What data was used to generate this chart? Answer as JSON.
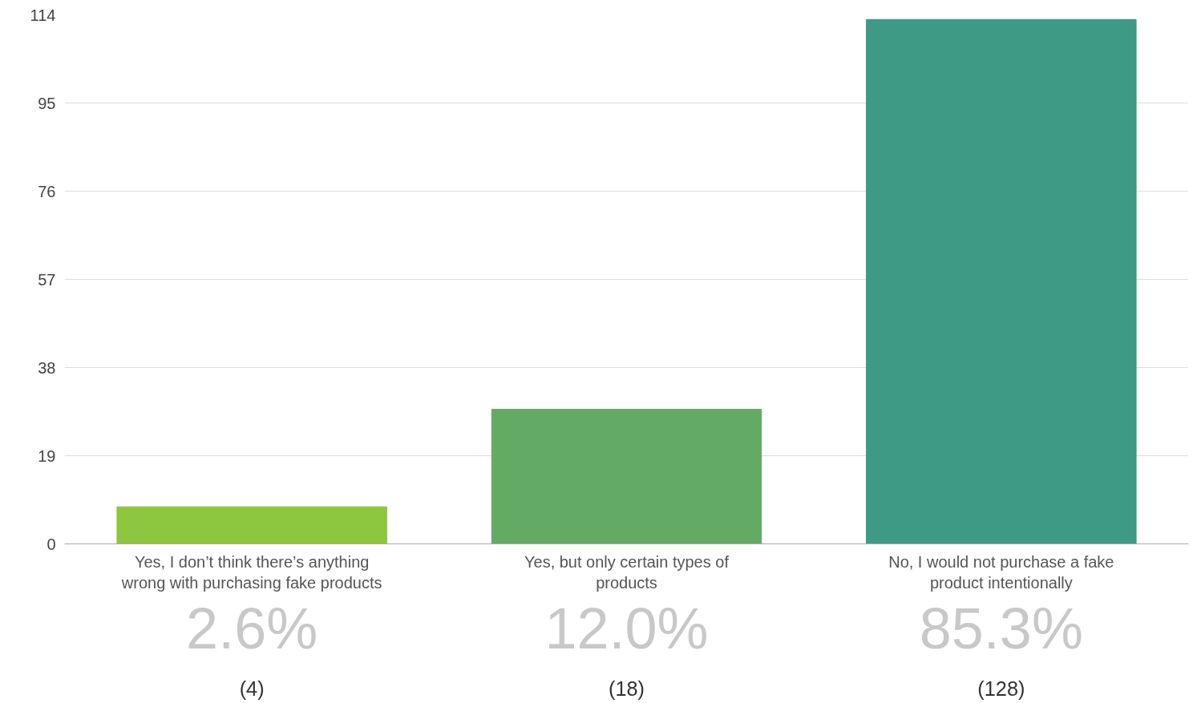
{
  "chart_data": {
    "type": "bar",
    "categories": [
      "Yes, I don’t think there’s anything wrong with purchasing fake products",
      "Yes, but only certain types of products",
      "No, I would not purchase a fake product intentionally"
    ],
    "values": [
      8,
      29,
      113
    ],
    "colors": [
      "#8dc63f",
      "#63ab65",
      "#3e9985"
    ],
    "ylim": [
      0,
      114
    ],
    "yticks": [
      0,
      19,
      38,
      57,
      76,
      95,
      114
    ],
    "grid": "y",
    "annotations": [
      "2.6%",
      "12.0%",
      "85.3%",
      "(4)",
      "(18)",
      "(128)"
    ]
  }
}
